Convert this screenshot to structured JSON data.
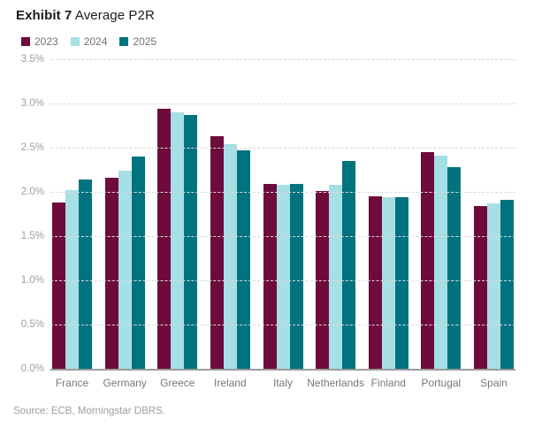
{
  "title": {
    "exhibit_label": "Exhibit 7",
    "chart_name": " Average P2R"
  },
  "legend": {
    "items": [
      {
        "label": "2023",
        "color": "#6E0B3C"
      },
      {
        "label": "2024",
        "color": "#A6DFE4"
      },
      {
        "label": "2025",
        "color": "#00737F"
      }
    ]
  },
  "source_note": "Source: ECB, Morningstar DBRS.",
  "chart_data": {
    "type": "bar",
    "title": "Exhibit 7 Average P2R",
    "categories": [
      "France",
      "Germany",
      "Greece",
      "Ireland",
      "Italy",
      "Netherlands",
      "Finland",
      "Portugal",
      "Spain"
    ],
    "series": [
      {
        "name": "2023",
        "color": "#6E0B3C",
        "values": [
          1.88,
          2.16,
          2.94,
          2.63,
          2.09,
          2.01,
          1.95,
          2.45,
          1.84
        ]
      },
      {
        "name": "2024",
        "color": "#A6DFE4",
        "values": [
          2.02,
          2.24,
          2.9,
          2.54,
          2.08,
          2.08,
          1.94,
          2.41,
          1.87
        ]
      },
      {
        "name": "2025",
        "color": "#00737F",
        "values": [
          2.14,
          2.4,
          2.87,
          2.47,
          2.09,
          2.35,
          1.94,
          2.28,
          1.91
        ]
      }
    ],
    "unit": "%",
    "ylim": [
      0,
      3.5
    ],
    "ytick_step": 0.5,
    "ytick_labels": [
      "0.0%",
      "0.5%",
      "1.0%",
      "1.5%",
      "2.0%",
      "2.5%",
      "3.0%",
      "3.5%"
    ],
    "grid": "horizontal-dashed",
    "legend_position": "top-left",
    "xlabel": "",
    "ylabel": ""
  }
}
